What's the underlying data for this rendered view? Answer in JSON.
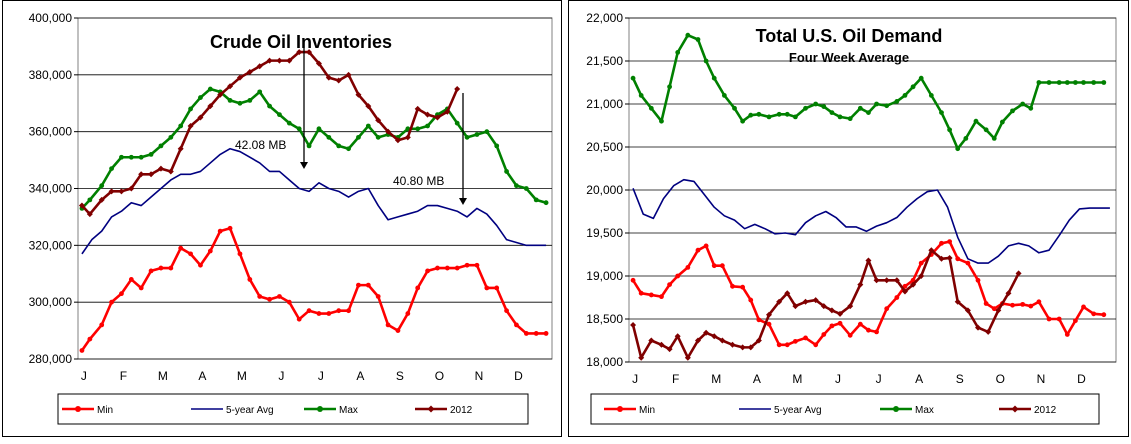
{
  "chart_data": [
    {
      "type": "line",
      "title": "Crude Oil Inventories",
      "subtitle": "",
      "ylim": [
        280000,
        400000
      ],
      "y_ticks": [
        "280,000",
        "300,000",
        "320,000",
        "340,000",
        "360,000",
        "380,000",
        "400,000"
      ],
      "y_tick_values": [
        280000,
        300000,
        320000,
        340000,
        360000,
        380000,
        400000
      ],
      "x_ticks": [
        "J",
        "F",
        "M",
        "A",
        "M",
        "J",
        "J",
        "A",
        "S",
        "O",
        "N",
        "D"
      ],
      "grid": true,
      "legend_position": "bottom",
      "series": [
        {
          "name": "Min",
          "color": "#ff0000",
          "marker": "circle",
          "x": [
            0,
            0.2,
            0.5,
            0.75,
            1,
            1.25,
            1.5,
            1.75,
            2,
            2.25,
            2.5,
            2.75,
            3,
            3.25,
            3.5,
            3.75,
            4,
            4.25,
            4.5,
            4.75,
            5,
            5.25,
            5.5,
            5.75,
            6,
            6.25,
            6.5,
            6.75,
            7,
            7.25,
            7.5,
            7.75,
            8,
            8.25,
            8.5,
            8.75,
            9,
            9.25,
            9.5,
            9.75,
            10,
            10.25,
            10.5,
            10.75,
            11,
            11.25,
            11.5,
            11.75
          ],
          "y": [
            283000,
            287000,
            292000,
            300000,
            303000,
            308000,
            305000,
            311000,
            312000,
            312000,
            319000,
            317000,
            313000,
            318000,
            325000,
            326000,
            317000,
            308000,
            302000,
            301000,
            302000,
            300000,
            294000,
            297000,
            296000,
            296000,
            297000,
            297000,
            306000,
            306000,
            302000,
            292000,
            290000,
            296000,
            305000,
            311000,
            312000,
            312000,
            312000,
            313000,
            313000,
            305000,
            305000,
            297000,
            292000,
            289000,
            289000,
            289000
          ]
        },
        {
          "name": "5-year Avg",
          "color": "#000080",
          "marker": "none",
          "x": [
            0,
            0.25,
            0.5,
            0.75,
            1,
            1.25,
            1.5,
            1.75,
            2,
            2.25,
            2.5,
            2.75,
            3,
            3.25,
            3.5,
            3.75,
            4,
            4.25,
            4.5,
            4.75,
            5,
            5.25,
            5.5,
            5.75,
            6,
            6.25,
            6.5,
            6.75,
            7,
            7.25,
            7.5,
            7.75,
            8,
            8.25,
            8.5,
            8.75,
            9,
            9.25,
            9.5,
            9.75,
            10,
            10.25,
            10.5,
            10.75,
            11,
            11.25,
            11.5,
            11.75
          ],
          "y": [
            317000,
            322000,
            325000,
            330000,
            332000,
            335000,
            334000,
            337000,
            340000,
            343000,
            345000,
            345000,
            346000,
            349000,
            352000,
            354000,
            353000,
            351000,
            349000,
            346000,
            346000,
            343000,
            340000,
            339000,
            342000,
            340000,
            339000,
            337000,
            339000,
            340000,
            334000,
            329000,
            330000,
            331000,
            332000,
            334000,
            334000,
            333000,
            332000,
            330000,
            333000,
            331000,
            327000,
            322000,
            321000,
            320000,
            320000,
            320000
          ]
        },
        {
          "name": "Max",
          "color": "#008000",
          "marker": "circle",
          "x": [
            0,
            0.2,
            0.5,
            0.75,
            1,
            1.25,
            1.5,
            1.75,
            2,
            2.25,
            2.5,
            2.75,
            3,
            3.25,
            3.5,
            3.75,
            4,
            4.25,
            4.5,
            4.75,
            5,
            5.25,
            5.5,
            5.75,
            6,
            6.25,
            6.5,
            6.75,
            7,
            7.25,
            7.5,
            7.75,
            8,
            8.25,
            8.5,
            8.75,
            9,
            9.25,
            9.5,
            9.75,
            10,
            10.25,
            10.5,
            10.75,
            11,
            11.25,
            11.5,
            11.75
          ],
          "y": [
            333000,
            336000,
            341000,
            347000,
            351000,
            351000,
            351000,
            352000,
            355000,
            358000,
            362000,
            368000,
            372000,
            375000,
            374000,
            371000,
            370000,
            371000,
            374000,
            369000,
            366000,
            363000,
            361000,
            355000,
            361000,
            358000,
            355000,
            354000,
            358000,
            362000,
            358000,
            359000,
            358000,
            361000,
            361000,
            362000,
            366000,
            368000,
            363000,
            358000,
            359000,
            360000,
            355000,
            346000,
            341000,
            340000,
            336000,
            335000
          ]
        },
        {
          "name": "2012",
          "color": "#800000",
          "marker": "diamond",
          "x": [
            0,
            0.2,
            0.5,
            0.75,
            1,
            1.25,
            1.5,
            1.75,
            2,
            2.25,
            2.5,
            2.75,
            3,
            3.25,
            3.5,
            3.75,
            4,
            4.25,
            4.5,
            4.75,
            5,
            5.25,
            5.5,
            5.75,
            6,
            6.25,
            6.5,
            6.75,
            7,
            7.25,
            7.5,
            7.75,
            8,
            8.25,
            8.5,
            8.75,
            9,
            9.25,
            9.5
          ],
          "y": [
            334000,
            331000,
            336000,
            339000,
            339000,
            340000,
            345000,
            345000,
            347000,
            346000,
            354000,
            362000,
            365000,
            369000,
            373000,
            376000,
            379000,
            381000,
            383000,
            385000,
            385000,
            385000,
            388000,
            388000,
            384000,
            379000,
            378000,
            380000,
            373000,
            369000,
            364000,
            360000,
            357000,
            358000,
            368000,
            366000,
            365000,
            367000,
            375000
          ]
        }
      ],
      "annotations": [
        {
          "text": "42.08 MB"
        },
        {
          "text": "40.80 MB"
        }
      ]
    },
    {
      "type": "line",
      "title": "Total U.S. Oil Demand",
      "subtitle": "Four Week Average",
      "ylim": [
        18000,
        22000
      ],
      "y_ticks": [
        "18,000",
        "18,500",
        "19,000",
        "19,500",
        "20,000",
        "20,500",
        "21,000",
        "21,500",
        "22,000"
      ],
      "y_tick_values": [
        18000,
        18500,
        19000,
        19500,
        20000,
        20500,
        21000,
        21500,
        22000
      ],
      "x_ticks": [
        "J",
        "F",
        "M",
        "A",
        "M",
        "J",
        "J",
        "A",
        "S",
        "O",
        "N",
        "D"
      ],
      "grid": true,
      "legend_position": "bottom",
      "series": [
        {
          "name": "Min",
          "color": "#ff0000",
          "marker": "circle",
          "x": [
            0,
            0.2,
            0.45,
            0.7,
            0.9,
            1.1,
            1.35,
            1.6,
            1.8,
            2,
            2.2,
            2.45,
            2.7,
            2.9,
            3.1,
            3.35,
            3.6,
            3.8,
            4,
            4.25,
            4.5,
            4.7,
            4.9,
            5.1,
            5.35,
            5.6,
            5.8,
            6,
            6.25,
            6.5,
            6.7,
            6.9,
            7.1,
            7.35,
            7.6,
            7.8,
            8,
            8.25,
            8.5,
            8.7,
            8.9,
            9.1,
            9.35,
            9.6,
            9.8,
            10,
            10.25,
            10.5,
            10.7,
            10.9,
            11.1,
            11.35,
            11.6
          ],
          "y": [
            18950,
            18800,
            18780,
            18760,
            18900,
            19000,
            19100,
            19300,
            19350,
            19120,
            19120,
            18880,
            18870,
            18720,
            18490,
            18440,
            18200,
            18200,
            18240,
            18280,
            18200,
            18320,
            18420,
            18450,
            18310,
            18440,
            18370,
            18350,
            18620,
            18750,
            18880,
            18950,
            19150,
            19250,
            19380,
            19400,
            19200,
            19150,
            18950,
            18680,
            18620,
            18680,
            18660,
            18670,
            18650,
            18700,
            18500,
            18500,
            18320,
            18480,
            18640,
            18560,
            18550
          ]
        },
        {
          "name": "5-year Avg",
          "color": "#000080",
          "marker": "none",
          "x": [
            0,
            0.25,
            0.5,
            0.75,
            1,
            1.25,
            1.5,
            1.75,
            2,
            2.25,
            2.5,
            2.75,
            3,
            3.25,
            3.5,
            3.75,
            4,
            4.25,
            4.5,
            4.75,
            5,
            5.25,
            5.5,
            5.75,
            6,
            6.25,
            6.5,
            6.75,
            7,
            7.25,
            7.5,
            7.75,
            8,
            8.25,
            8.5,
            8.75,
            9,
            9.25,
            9.5,
            9.75,
            10,
            10.25,
            10.5,
            10.75,
            11,
            11.25,
            11.5,
            11.75
          ],
          "y": [
            20020,
            19720,
            19670,
            19900,
            20050,
            20120,
            20100,
            19950,
            19800,
            19700,
            19650,
            19550,
            19600,
            19550,
            19490,
            19500,
            19480,
            19620,
            19700,
            19750,
            19680,
            19570,
            19570,
            19520,
            19580,
            19620,
            19680,
            19800,
            19900,
            19980,
            20000,
            19800,
            19450,
            19200,
            19150,
            19150,
            19230,
            19350,
            19380,
            19350,
            19270,
            19300,
            19470,
            19650,
            19780,
            19790,
            19790,
            19790
          ]
        },
        {
          "name": "Max",
          "color": "#008000",
          "marker": "circle",
          "x": [
            0,
            0.2,
            0.45,
            0.7,
            0.9,
            1.1,
            1.35,
            1.6,
            1.8,
            2,
            2.25,
            2.5,
            2.7,
            2.9,
            3.1,
            3.35,
            3.6,
            3.8,
            4,
            4.25,
            4.5,
            4.7,
            4.9,
            5.1,
            5.35,
            5.6,
            5.8,
            6,
            6.25,
            6.5,
            6.7,
            6.9,
            7.1,
            7.35,
            7.6,
            7.8,
            8,
            8.2,
            8.45,
            8.7,
            8.9,
            9.1,
            9.35,
            9.6,
            9.8,
            10,
            10.25,
            10.5,
            10.7,
            10.9,
            11.1,
            11.35,
            11.6
          ],
          "y": [
            21300,
            21100,
            20950,
            20800,
            21200,
            21600,
            21800,
            21750,
            21500,
            21300,
            21100,
            20950,
            20800,
            20870,
            20880,
            20850,
            20880,
            20880,
            20850,
            20950,
            21000,
            20970,
            20900,
            20850,
            20830,
            20950,
            20900,
            21000,
            20980,
            21030,
            21100,
            21200,
            21300,
            21100,
            20900,
            20700,
            20480,
            20600,
            20800,
            20700,
            20600,
            20790,
            20920,
            21000,
            20950,
            21250,
            21250,
            21250,
            21250,
            21250,
            21250,
            21250,
            21250
          ]
        },
        {
          "name": "2012",
          "color": "#800000",
          "marker": "diamond",
          "x": [
            0,
            0.2,
            0.45,
            0.7,
            0.9,
            1.1,
            1.35,
            1.6,
            1.8,
            2,
            2.2,
            2.45,
            2.7,
            2.9,
            3.1,
            3.35,
            3.6,
            3.8,
            4,
            4.25,
            4.5,
            4.7,
            4.9,
            5.1,
            5.35,
            5.6,
            5.8,
            6,
            6.25,
            6.5,
            6.7,
            6.9,
            7.1,
            7.35,
            7.6,
            7.8,
            8,
            8.25,
            8.5,
            8.75,
            9,
            9.25,
            9.5
          ],
          "y": [
            18430,
            18050,
            18250,
            18200,
            18150,
            18300,
            18050,
            18250,
            18340,
            18300,
            18250,
            18200,
            18170,
            18170,
            18250,
            18550,
            18700,
            18800,
            18650,
            18700,
            18720,
            18650,
            18600,
            18560,
            18650,
            18900,
            19180,
            18950,
            18950,
            18950,
            18820,
            18900,
            19000,
            19300,
            19200,
            19210,
            18700,
            18600,
            18400,
            18350,
            18600,
            18800,
            19030
          ]
        }
      ]
    }
  ]
}
